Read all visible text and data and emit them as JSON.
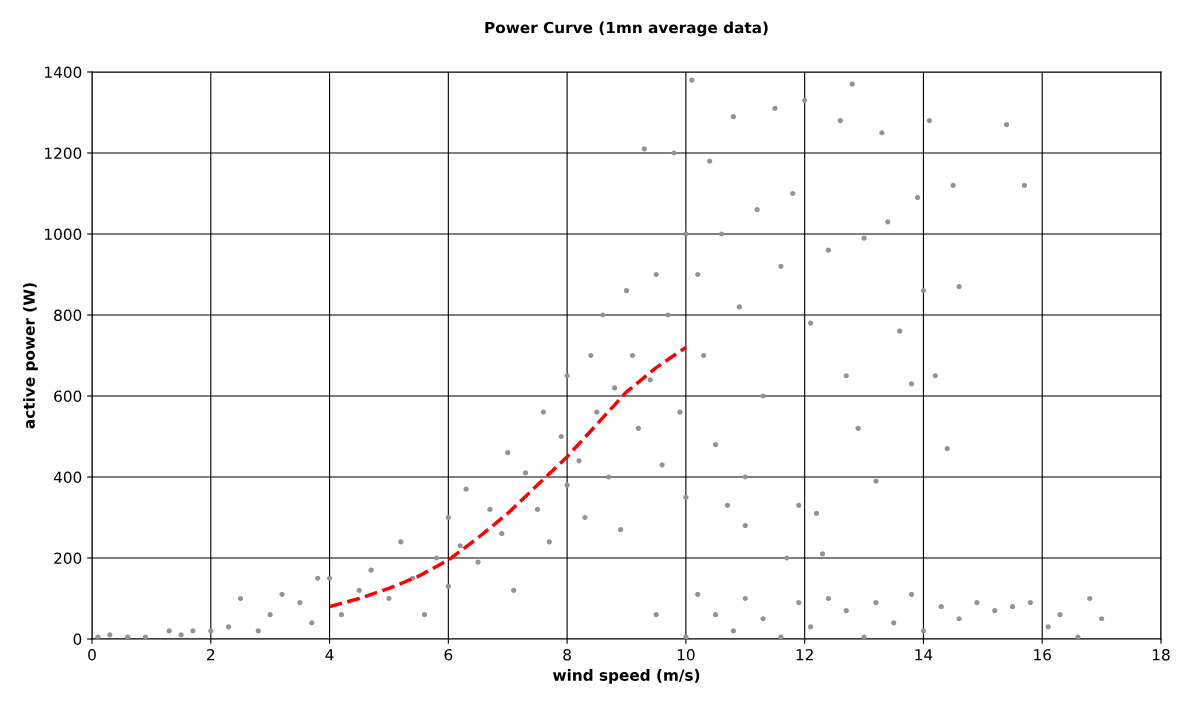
{
  "chart_data": {
    "type": "scatter",
    "title": "Power Curve (1mn average data)",
    "xlabel": "wind speed (m/s)",
    "ylabel": "active power (W)",
    "xlim": [
      0,
      18
    ],
    "xticks": [
      0,
      2,
      4,
      6,
      8,
      10,
      12,
      14,
      16,
      18
    ],
    "ylim": [
      0,
      1400
    ],
    "yticks": [
      0,
      200,
      400,
      600,
      800,
      1000,
      1200,
      1400
    ],
    "grid": true,
    "series": [
      {
        "color": "#939393",
        "marker": "circle",
        "x": [
          0.1,
          0.3,
          0.6,
          0.9,
          1.3,
          1.5,
          1.7,
          2.0,
          2.3,
          2.5,
          2.8,
          3.0,
          3.2,
          3.5,
          3.8,
          3.7,
          4.0,
          4.2,
          4.5,
          4.7,
          5.0,
          5.2,
          5.4,
          5.6,
          5.8,
          6.0,
          6.0,
          6.2,
          6.3,
          6.5,
          6.7,
          6.9,
          7.0,
          7.1,
          7.3,
          7.5,
          7.6,
          7.7,
          7.9,
          8.0,
          8.0,
          8.2,
          8.3,
          8.4,
          8.5,
          8.6,
          8.7,
          8.8,
          8.9,
          9.0,
          9.1,
          9.2,
          9.3,
          9.4,
          9.5,
          9.6,
          9.7,
          9.8,
          9.9,
          10.0,
          10.0,
          10.1,
          10.2,
          10.3,
          10.4,
          10.5,
          10.6,
          10.8,
          10.9,
          11.0,
          11.2,
          11.3,
          11.5,
          11.6,
          11.7,
          11.8,
          11.9,
          12.0,
          12.1,
          12.2,
          12.4,
          12.6,
          12.7,
          12.8,
          12.9,
          13.0,
          13.2,
          13.3,
          13.4,
          13.6,
          13.8,
          13.9,
          14.0,
          14.1,
          14.2,
          14.4,
          14.5,
          14.6,
          15.4,
          15.7,
          10.2,
          10.5,
          10.8,
          11.0,
          11.3,
          11.6,
          11.9,
          12.1,
          12.4,
          12.7,
          13.0,
          13.2,
          13.5,
          13.8,
          14.0,
          14.3,
          14.6,
          14.9,
          15.2,
          15.5,
          15.8,
          16.1,
          16.3,
          16.6,
          16.8,
          17.0,
          12.3,
          11.0,
          10.7,
          9.5,
          10.0
        ],
        "values": [
          5,
          10,
          5,
          5,
          20,
          10,
          20,
          20,
          30,
          100,
          20,
          60,
          110,
          90,
          150,
          40,
          150,
          60,
          120,
          170,
          100,
          240,
          150,
          60,
          200,
          300,
          130,
          230,
          370,
          190,
          320,
          260,
          460,
          120,
          410,
          320,
          560,
          240,
          500,
          380,
          650,
          440,
          300,
          700,
          560,
          800,
          400,
          620,
          270,
          860,
          700,
          520,
          1210,
          640,
          900,
          430,
          800,
          1200,
          560,
          1000,
          350,
          1380,
          900,
          700,
          1180,
          480,
          1000,
          1290,
          820,
          400,
          1060,
          600,
          1310,
          920,
          200,
          1100,
          330,
          1330,
          780,
          310,
          960,
          1280,
          650,
          1370,
          520,
          990,
          390,
          1250,
          1030,
          760,
          630,
          1090,
          860,
          1280,
          650,
          470,
          1120,
          870,
          1270,
          1120,
          110,
          60,
          20,
          100,
          50,
          5,
          90,
          30,
          100,
          70,
          5,
          90,
          40,
          110,
          20,
          80,
          50,
          90,
          70,
          80,
          90,
          30,
          60,
          5,
          100,
          50,
          210,
          280,
          330,
          60,
          5
        ]
      },
      {
        "type": "line",
        "color": "#ff0000",
        "line_style": "dashed",
        "marker": "none",
        "x": [
          4,
          4.5,
          5,
          5.5,
          6,
          6.5,
          7,
          7.5,
          8,
          8.5,
          9,
          9.5,
          10
        ],
        "values": [
          80,
          100,
          125,
          155,
          195,
          250,
          310,
          380,
          450,
          530,
          610,
          670,
          720
        ]
      }
    ]
  }
}
